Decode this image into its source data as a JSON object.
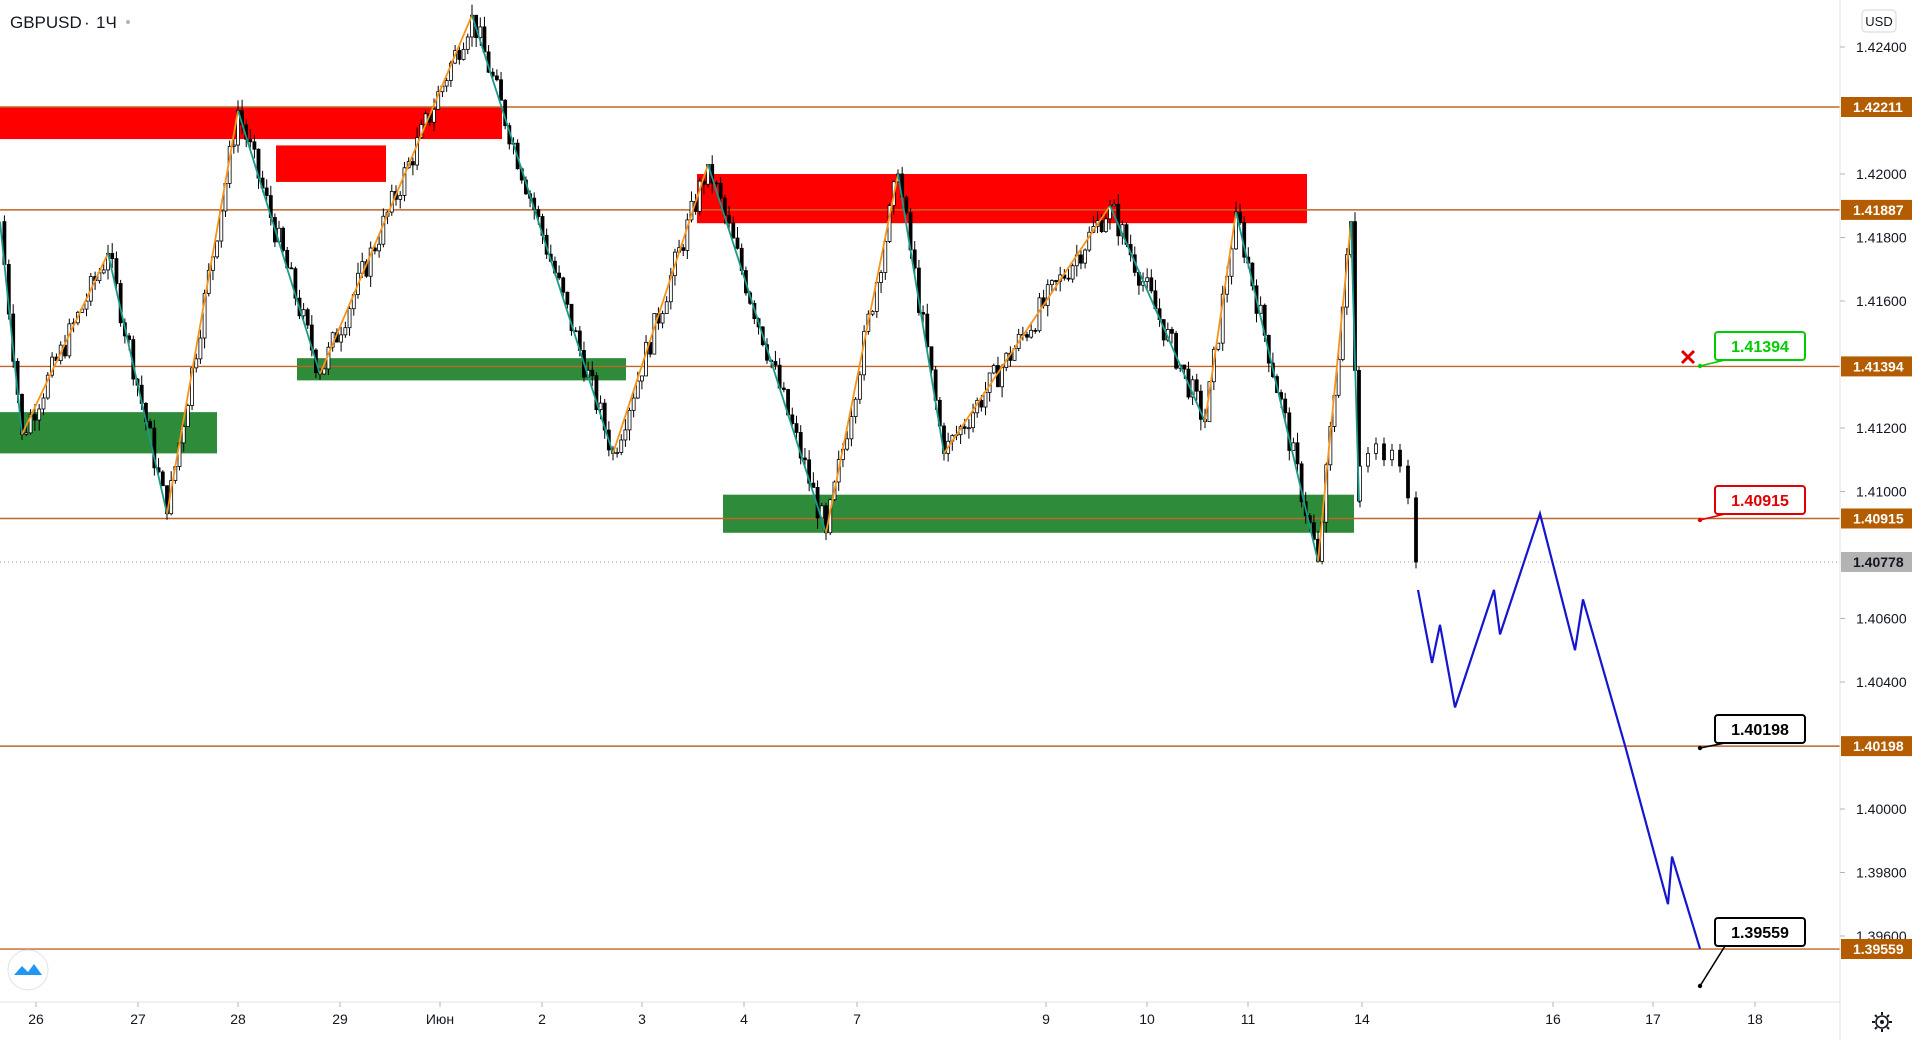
{
  "header": {
    "symbol": "GBPUSD",
    "sep": "·",
    "interval": "1Ч",
    "currency": "USD"
  },
  "colors": {
    "bullish_zigzag": "#f7931a",
    "bearish_zigzag": "#1a9a8a",
    "resistance_zone": "#ff0000",
    "support_zone": "#2e8b3a",
    "level_line": "#c0652a",
    "forecast": "#1515d0",
    "candle": "#000000",
    "label_green": "#00cc00",
    "label_red": "#e00000",
    "label_black": "#000000",
    "price_tag_bg": "#b35c00",
    "current_tag_bg": "#b3b3b3"
  },
  "chart_data": {
    "type": "line",
    "title": "",
    "symbol": "GBPUSD",
    "timeframe": "1Ч",
    "x_ticks": [
      "26",
      "27",
      "28",
      "29",
      "Июн",
      "2",
      "3",
      "4",
      "7",
      "9",
      "10",
      "11",
      "14",
      "16",
      "17",
      "18"
    ],
    "y_ticks": [
      "1.42400",
      "1.42000",
      "1.41800",
      "1.41600",
      "1.41200",
      "1.41000",
      "1.40600",
      "1.40400",
      "1.40000",
      "1.39800",
      "1.39600"
    ],
    "ylim": [
      1.3935,
      1.4253
    ],
    "horizontal_levels": [
      1.42211,
      1.41887,
      1.41394,
      1.40915,
      1.40198,
      1.39559
    ],
    "price_tags": [
      "1.42211",
      "1.41887",
      "1.41394",
      "1.40915",
      "1.40198",
      "1.39559"
    ],
    "current_price": "1.40778",
    "annotations": [
      {
        "text": "1.41394",
        "style": "green"
      },
      {
        "text": "1.40915",
        "style": "red"
      },
      {
        "text": "1.40198",
        "style": "black"
      },
      {
        "text": "1.39559",
        "style": "black"
      }
    ],
    "resistance_zones": [
      {
        "from": "26",
        "to": "1",
        "top": 1.42211,
        "bottom": 1.4211
      },
      {
        "from": "28",
        "to": "29",
        "top": 1.4209,
        "bottom": 1.41975
      },
      {
        "from": "3",
        "to": "11",
        "top": 1.42,
        "bottom": 1.41845
      }
    ],
    "support_zones": [
      {
        "from": "26",
        "to": "27",
        "top": 1.4125,
        "bottom": 1.4112
      },
      {
        "from": "28",
        "to": "2",
        "top": 1.4142,
        "bottom": 1.4135
      },
      {
        "from": "3",
        "to": "14",
        "top": 1.4099,
        "bottom": 1.4087
      }
    ],
    "zigzag": [
      1.4185,
      1.4118,
      1.4175,
      1.4093,
      1.422,
      1.4137,
      1.425,
      1.4112,
      1.4203,
      1.4087,
      1.42,
      1.4112,
      1.419,
      1.4122,
      1.4188,
      1.4078,
      1.4185,
      1.4097
    ],
    "forecast_path": [
      1.4069,
      1.4046,
      1.4058,
      1.4032,
      1.4069,
      1.4055,
      1.4093,
      1.405,
      1.4066,
      1.402,
      1.397,
      1.3985,
      1.3956
    ]
  }
}
